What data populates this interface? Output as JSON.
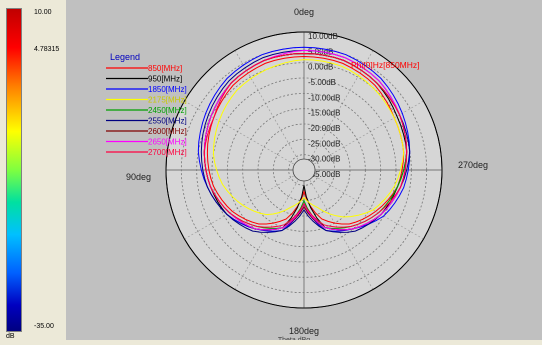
{
  "scale": {
    "max": "10.00",
    "marker": "4.78315",
    "min": "-35.00",
    "unit": "dB"
  },
  "chart_data": {
    "type": "line",
    "polar": true,
    "title": "0deg",
    "bottom_angle_label": "180deg",
    "left_angle_label": "90deg",
    "right_angle_label": "270deg",
    "xlabel": "Theta dBg",
    "radial_ticks": [
      "10.00dB",
      "5.00dB",
      "0.00dB",
      "-5.00dB",
      "-10.00dB",
      "-15.00dB",
      "-20.00dB",
      "-25.00dB",
      "-30.00dB",
      "-35.00dB"
    ],
    "radial_range": [
      -35,
      10
    ],
    "legend_title": "Legend",
    "annotation": "Phi[0]Hz[850MHz]",
    "series": [
      {
        "name": "850[MHz]",
        "color": "#ff0000"
      },
      {
        "name": "950[MHz]",
        "color": "#000000"
      },
      {
        "name": "1850[MHz]",
        "color": "#0000ff"
      },
      {
        "name": "2175[MHz]",
        "color": "#ffff00"
      },
      {
        "name": "2450[MHz]",
        "color": "#00a000"
      },
      {
        "name": "2550[MHz]",
        "color": "#000080"
      },
      {
        "name": "2600[MHz]",
        "color": "#800000"
      },
      {
        "name": "2650[MHz]",
        "color": "#ff00ff"
      },
      {
        "name": "2700[MHz]",
        "color": "#ff0040"
      }
    ],
    "angles_deg": [
      0,
      20,
      40,
      60,
      80,
      100,
      120,
      140,
      160,
      180,
      200,
      220,
      240,
      260,
      280,
      300,
      320,
      340
    ],
    "values": [
      [
        2,
        2,
        1,
        -1,
        -3,
        -5,
        -8,
        -12,
        -18,
        -28,
        -18,
        -12,
        -8,
        -4,
        -2,
        -1,
        1,
        2
      ],
      [
        3,
        3,
        2,
        0,
        -2,
        -4,
        -6,
        -10,
        -15,
        -30,
        -15,
        -10,
        -6,
        -4,
        -1,
        0,
        2,
        3
      ],
      [
        5,
        5,
        4,
        2,
        0,
        -3,
        -6,
        -10,
        -14,
        -24,
        -14,
        -10,
        -5,
        -2,
        0,
        2,
        4,
        5
      ],
      [
        1,
        0,
        -1,
        -3,
        -5,
        -8,
        -12,
        -16,
        -22,
        -26,
        -22,
        -15,
        -9,
        -5,
        -2,
        -1,
        0,
        1
      ],
      [
        3,
        3,
        2,
        0,
        -2,
        -4,
        -7,
        -11,
        -15,
        -25,
        -15,
        -11,
        -7,
        -4,
        -1,
        1,
        2,
        3
      ],
      [
        4,
        4,
        3,
        1,
        -1,
        -3,
        -6,
        -9,
        -14,
        -22,
        -14,
        -9,
        -6,
        -3,
        0,
        1,
        3,
        4
      ],
      [
        3,
        3,
        2,
        0,
        -2,
        -4,
        -7,
        -10,
        -15,
        -23,
        -15,
        -10,
        -6,
        -3,
        -1,
        1,
        2,
        3
      ],
      [
        4,
        3,
        2,
        0,
        -2,
        -4,
        -7,
        -10,
        -15,
        -24,
        -15,
        -10,
        -6,
        -3,
        -1,
        1,
        3,
        4
      ],
      [
        3,
        3,
        2,
        -1,
        -2,
        -4,
        -7,
        -11,
        -16,
        -24,
        -16,
        -11,
        -7,
        -3,
        -1,
        1,
        2,
        3
      ]
    ]
  }
}
